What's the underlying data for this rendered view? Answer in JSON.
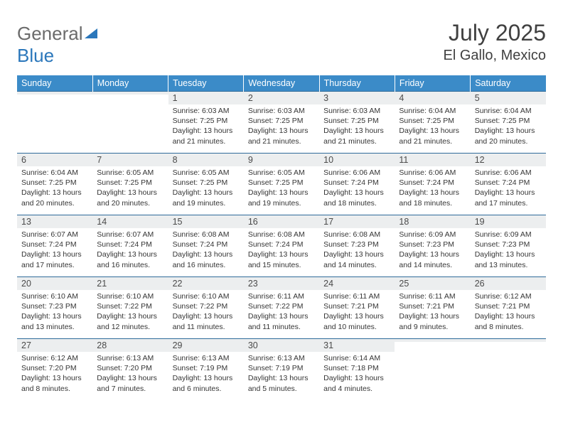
{
  "brand": {
    "part1": "General",
    "part2": "Blue"
  },
  "title": "July 2025",
  "location": "El Gallo, Mexico",
  "colors": {
    "header_bg": "#3b8bc8",
    "row_border": "#2f6b9a",
    "daynum_bg": "#eceeef",
    "text": "#353535",
    "brand_grey": "#6b6b6b",
    "brand_blue": "#2b77bb"
  },
  "day_headers": [
    "Sunday",
    "Monday",
    "Tuesday",
    "Wednesday",
    "Thursday",
    "Friday",
    "Saturday"
  ],
  "weeks": [
    [
      {
        "n": "",
        "sr": "",
        "ss": "",
        "dl": ""
      },
      {
        "n": "",
        "sr": "",
        "ss": "",
        "dl": ""
      },
      {
        "n": "1",
        "sr": "6:03 AM",
        "ss": "7:25 PM",
        "dl": "13 hours and 21 minutes."
      },
      {
        "n": "2",
        "sr": "6:03 AM",
        "ss": "7:25 PM",
        "dl": "13 hours and 21 minutes."
      },
      {
        "n": "3",
        "sr": "6:03 AM",
        "ss": "7:25 PM",
        "dl": "13 hours and 21 minutes."
      },
      {
        "n": "4",
        "sr": "6:04 AM",
        "ss": "7:25 PM",
        "dl": "13 hours and 21 minutes."
      },
      {
        "n": "5",
        "sr": "6:04 AM",
        "ss": "7:25 PM",
        "dl": "13 hours and 20 minutes."
      }
    ],
    [
      {
        "n": "6",
        "sr": "6:04 AM",
        "ss": "7:25 PM",
        "dl": "13 hours and 20 minutes."
      },
      {
        "n": "7",
        "sr": "6:05 AM",
        "ss": "7:25 PM",
        "dl": "13 hours and 20 minutes."
      },
      {
        "n": "8",
        "sr": "6:05 AM",
        "ss": "7:25 PM",
        "dl": "13 hours and 19 minutes."
      },
      {
        "n": "9",
        "sr": "6:05 AM",
        "ss": "7:25 PM",
        "dl": "13 hours and 19 minutes."
      },
      {
        "n": "10",
        "sr": "6:06 AM",
        "ss": "7:24 PM",
        "dl": "13 hours and 18 minutes."
      },
      {
        "n": "11",
        "sr": "6:06 AM",
        "ss": "7:24 PM",
        "dl": "13 hours and 18 minutes."
      },
      {
        "n": "12",
        "sr": "6:06 AM",
        "ss": "7:24 PM",
        "dl": "13 hours and 17 minutes."
      }
    ],
    [
      {
        "n": "13",
        "sr": "6:07 AM",
        "ss": "7:24 PM",
        "dl": "13 hours and 17 minutes."
      },
      {
        "n": "14",
        "sr": "6:07 AM",
        "ss": "7:24 PM",
        "dl": "13 hours and 16 minutes."
      },
      {
        "n": "15",
        "sr": "6:08 AM",
        "ss": "7:24 PM",
        "dl": "13 hours and 16 minutes."
      },
      {
        "n": "16",
        "sr": "6:08 AM",
        "ss": "7:24 PM",
        "dl": "13 hours and 15 minutes."
      },
      {
        "n": "17",
        "sr": "6:08 AM",
        "ss": "7:23 PM",
        "dl": "13 hours and 14 minutes."
      },
      {
        "n": "18",
        "sr": "6:09 AM",
        "ss": "7:23 PM",
        "dl": "13 hours and 14 minutes."
      },
      {
        "n": "19",
        "sr": "6:09 AM",
        "ss": "7:23 PM",
        "dl": "13 hours and 13 minutes."
      }
    ],
    [
      {
        "n": "20",
        "sr": "6:10 AM",
        "ss": "7:23 PM",
        "dl": "13 hours and 13 minutes."
      },
      {
        "n": "21",
        "sr": "6:10 AM",
        "ss": "7:22 PM",
        "dl": "13 hours and 12 minutes."
      },
      {
        "n": "22",
        "sr": "6:10 AM",
        "ss": "7:22 PM",
        "dl": "13 hours and 11 minutes."
      },
      {
        "n": "23",
        "sr": "6:11 AM",
        "ss": "7:22 PM",
        "dl": "13 hours and 11 minutes."
      },
      {
        "n": "24",
        "sr": "6:11 AM",
        "ss": "7:21 PM",
        "dl": "13 hours and 10 minutes."
      },
      {
        "n": "25",
        "sr": "6:11 AM",
        "ss": "7:21 PM",
        "dl": "13 hours and 9 minutes."
      },
      {
        "n": "26",
        "sr": "6:12 AM",
        "ss": "7:21 PM",
        "dl": "13 hours and 8 minutes."
      }
    ],
    [
      {
        "n": "27",
        "sr": "6:12 AM",
        "ss": "7:20 PM",
        "dl": "13 hours and 8 minutes."
      },
      {
        "n": "28",
        "sr": "6:13 AM",
        "ss": "7:20 PM",
        "dl": "13 hours and 7 minutes."
      },
      {
        "n": "29",
        "sr": "6:13 AM",
        "ss": "7:19 PM",
        "dl": "13 hours and 6 minutes."
      },
      {
        "n": "30",
        "sr": "6:13 AM",
        "ss": "7:19 PM",
        "dl": "13 hours and 5 minutes."
      },
      {
        "n": "31",
        "sr": "6:14 AM",
        "ss": "7:18 PM",
        "dl": "13 hours and 4 minutes."
      },
      {
        "n": "",
        "sr": "",
        "ss": "",
        "dl": ""
      },
      {
        "n": "",
        "sr": "",
        "ss": "",
        "dl": ""
      }
    ]
  ],
  "labels": {
    "sunrise": "Sunrise:",
    "sunset": "Sunset:",
    "daylight": "Daylight:"
  }
}
